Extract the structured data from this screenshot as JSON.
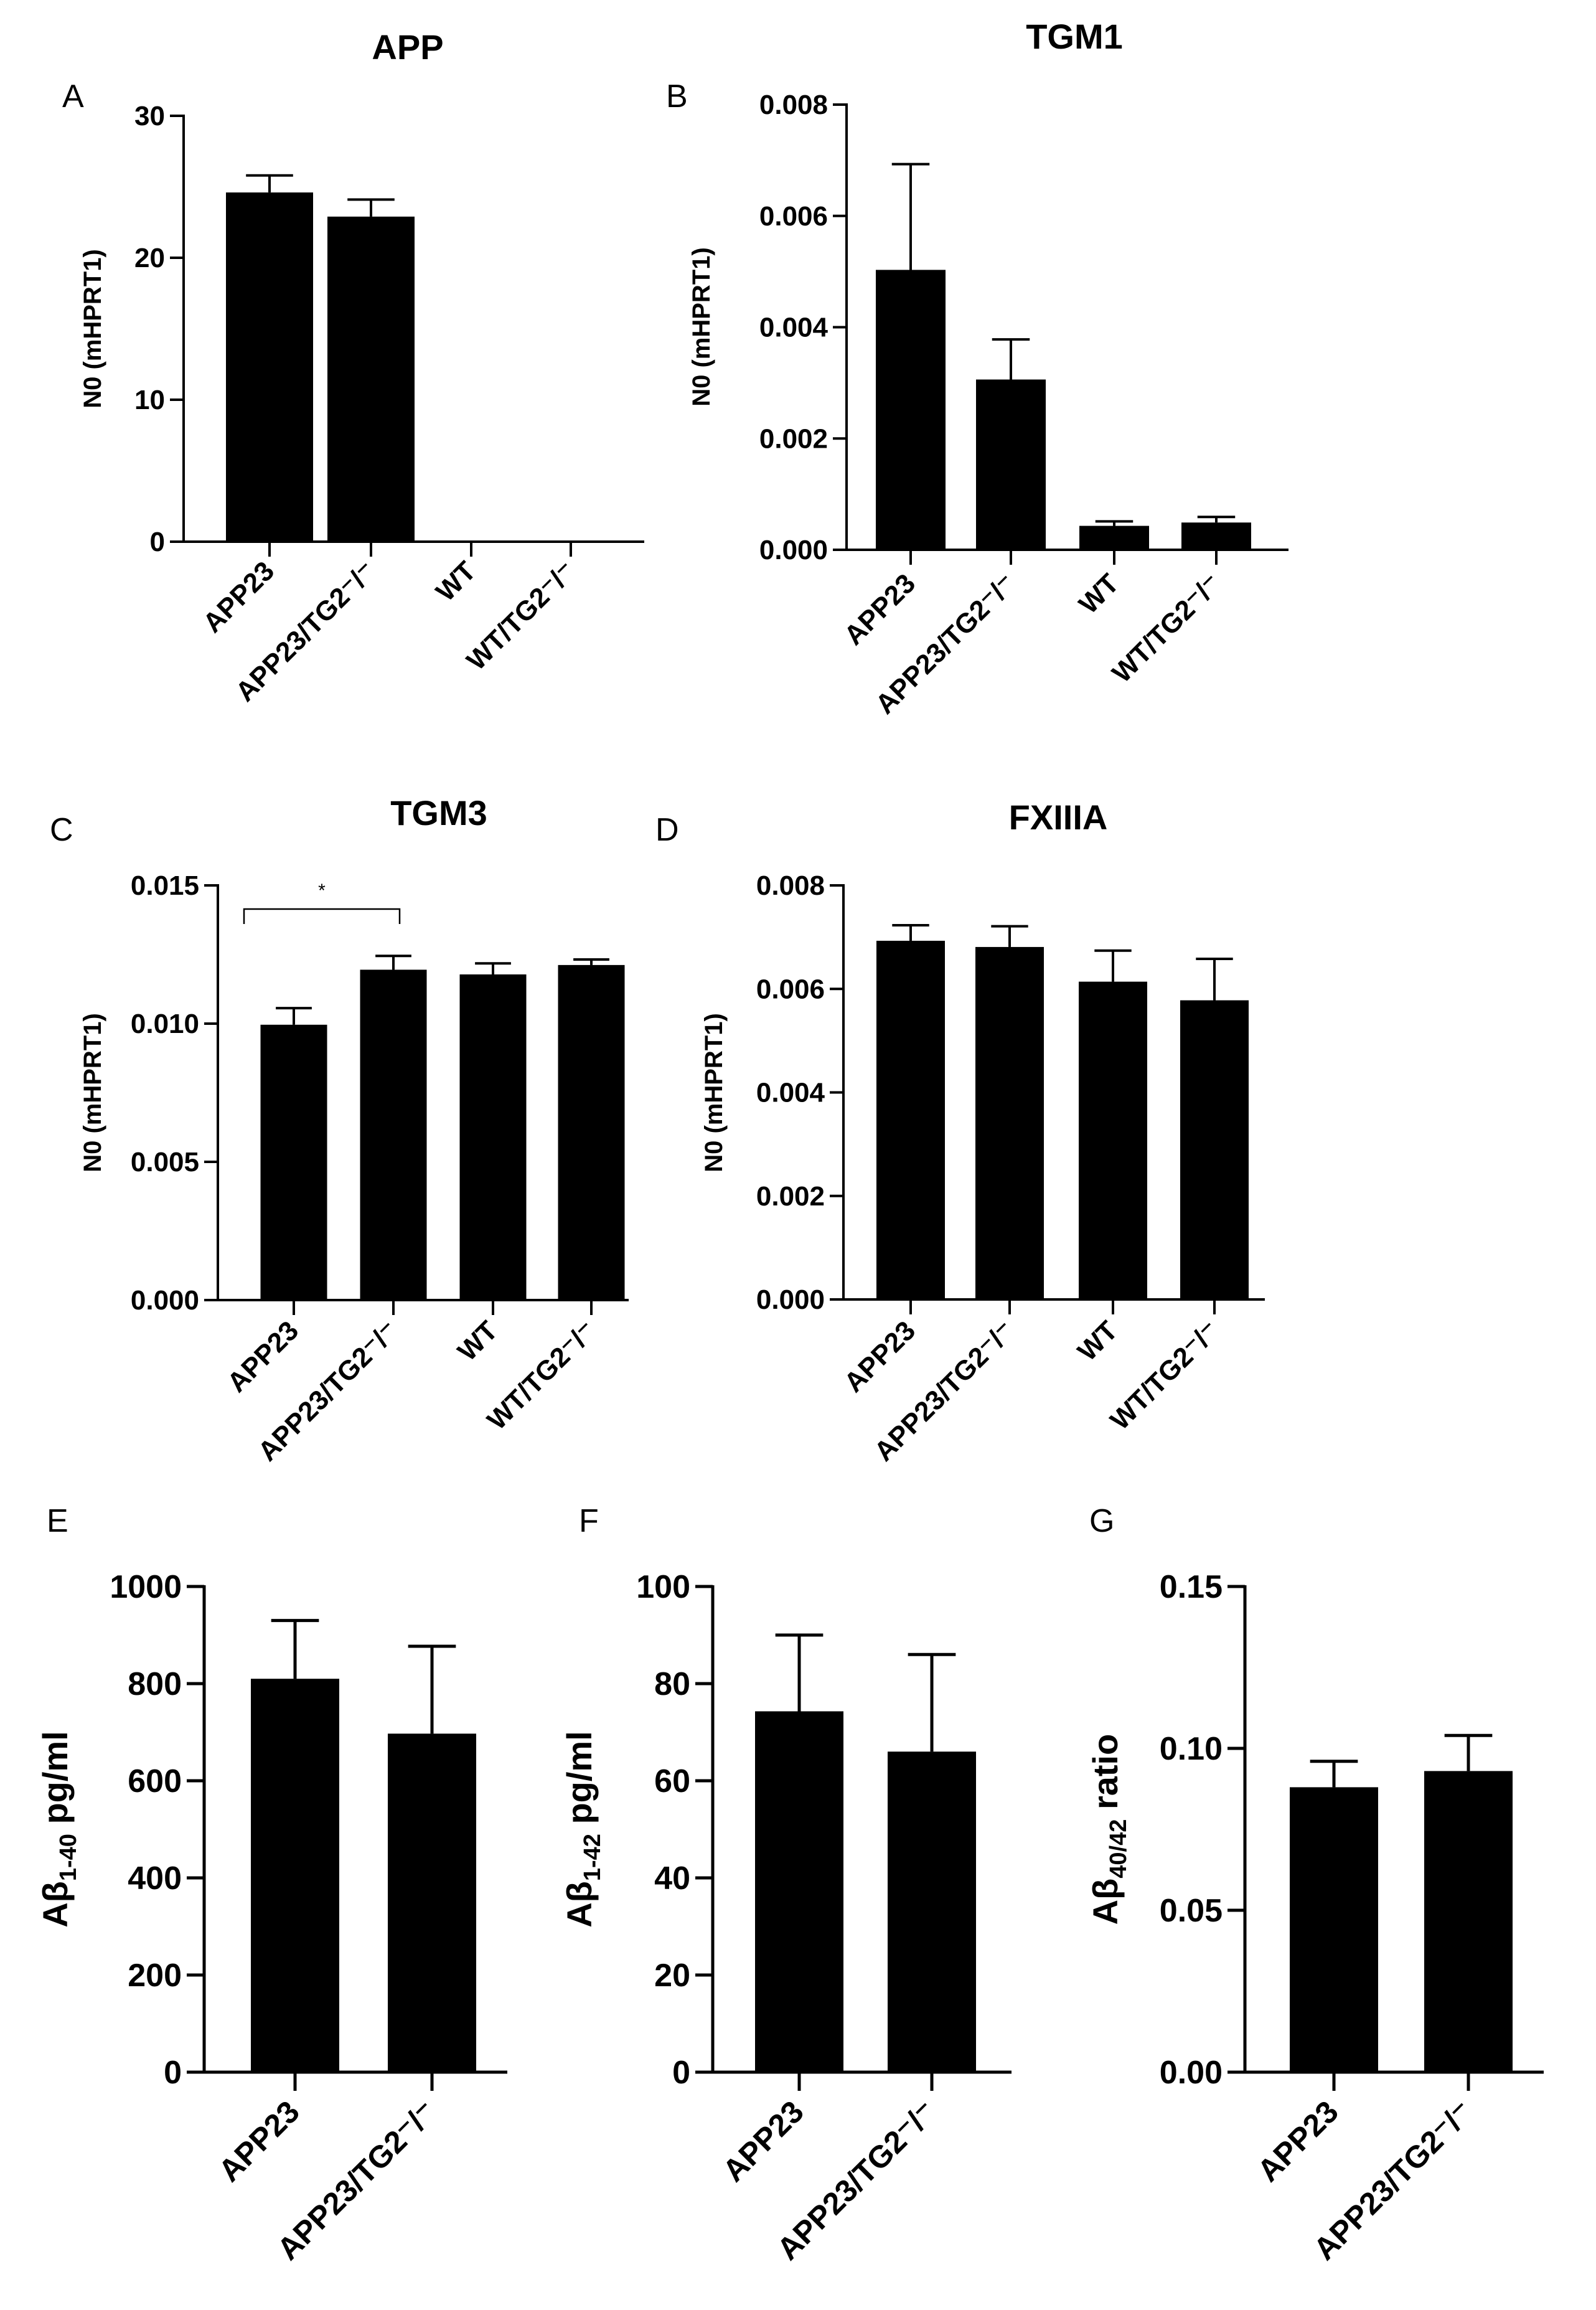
{
  "chart_data": [
    {
      "panel_label": "A",
      "type": "bar",
      "title": "APP",
      "ylabel": "N0 (mHPRT1)",
      "categories": [
        "APP23",
        "APP23/TG2⁻/⁻",
        "WT",
        "WT/TG2⁻/⁻"
      ],
      "values": [
        24.6,
        22.9,
        0,
        0
      ],
      "errors": [
        1.2,
        1.2,
        0,
        0
      ],
      "ylim": [
        0,
        30
      ],
      "yticks": [
        "0",
        "10",
        "20",
        "30"
      ]
    },
    {
      "panel_label": "B",
      "type": "bar",
      "title": "TGM1",
      "ylabel": "N0 (mHPRT1)",
      "categories": [
        "APP23",
        "APP23/TG2⁻/⁻",
        "WT",
        "WT/TG2⁻/⁻"
      ],
      "values": [
        0.00503,
        0.00306,
        0.00043,
        0.00049
      ],
      "errors": [
        0.0019,
        0.00072,
        8e-05,
        0.0001
      ],
      "ylim": [
        0,
        0.008
      ],
      "yticks": [
        "0.000",
        "0.002",
        "0.004",
        "0.006",
        "0.008"
      ]
    },
    {
      "panel_label": "C",
      "type": "bar",
      "title": "TGM3",
      "ylabel": "N0 (mHPRT1)",
      "categories": [
        "APP23",
        "APP23/TG2⁻/⁻",
        "WT",
        "WT/TG2⁻/⁻"
      ],
      "values": [
        0.00996,
        0.01195,
        0.01178,
        0.01212
      ],
      "errors": [
        0.0006,
        0.0005,
        0.0004,
        0.0002
      ],
      "ylim": [
        0,
        0.015
      ],
      "yticks": [
        "0.000",
        "0.005",
        "0.010",
        "0.015"
      ],
      "significance": {
        "label": "*",
        "from": 0,
        "to": 1
      }
    },
    {
      "panel_label": "D",
      "type": "bar",
      "title": "FXIIIA",
      "ylabel": "N0 (mHPRT1)",
      "categories": [
        "APP23",
        "APP23/TG2⁻/⁻",
        "WT",
        "WT/TG2⁻/⁻"
      ],
      "values": [
        0.00693,
        0.00681,
        0.00614,
        0.00578
      ],
      "errors": [
        0.0003,
        0.0004,
        0.0006,
        0.0008
      ],
      "ylim": [
        0,
        0.008
      ],
      "yticks": [
        "0.000",
        "0.002",
        "0.004",
        "0.006",
        "0.008"
      ]
    },
    {
      "panel_label": "E",
      "type": "bar",
      "title": "",
      "ylabel": "Aβ1-40 pg/ml",
      "ylabel_parts": {
        "main": "Aβ",
        "sub": "1-40",
        "rest": " pg/ml"
      },
      "categories": [
        "APP23",
        "APP23/TG2⁻/⁻"
      ],
      "values": [
        810,
        697
      ],
      "errors": [
        120,
        180
      ],
      "ylim": [
        0,
        1000
      ],
      "yticks": [
        "0",
        "200",
        "400",
        "600",
        "800",
        "1000"
      ]
    },
    {
      "panel_label": "F",
      "type": "bar",
      "title": "",
      "ylabel": "Aβ1-42 pg/ml",
      "ylabel_parts": {
        "main": "Aβ",
        "sub": "1-42",
        "rest": " pg/ml"
      },
      "categories": [
        "APP23",
        "APP23/TG2⁻/⁻"
      ],
      "values": [
        74.3,
        66.0
      ],
      "errors": [
        15.7,
        20.0
      ],
      "ylim": [
        0,
        100
      ],
      "yticks": [
        "0",
        "20",
        "40",
        "60",
        "80",
        "100"
      ]
    },
    {
      "panel_label": "G",
      "type": "bar",
      "title": "",
      "ylabel": "Aβ40/42 ratio",
      "ylabel_parts": {
        "main": "Aβ",
        "sub": "40/42",
        "rest": " ratio"
      },
      "categories": [
        "APP23",
        "APP23/TG2⁻/⁻"
      ],
      "values": [
        0.088,
        0.093
      ],
      "errors": [
        0.008,
        0.011
      ],
      "ylim": [
        0,
        0.15
      ],
      "yticks": [
        "0.00",
        "0.05",
        "0.10",
        "0.15"
      ]
    }
  ]
}
